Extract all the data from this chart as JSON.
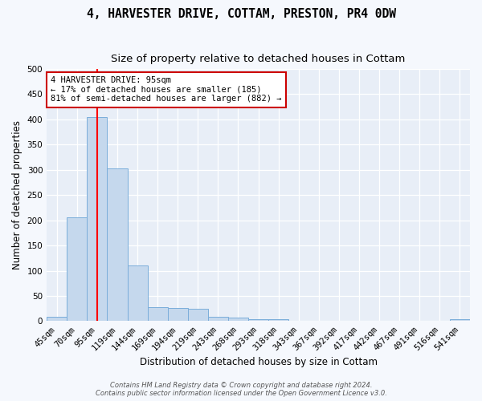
{
  "title": "4, HARVESTER DRIVE, COTTAM, PRESTON, PR4 0DW",
  "subtitle": "Size of property relative to detached houses in Cottam",
  "xlabel": "Distribution of detached houses by size in Cottam",
  "ylabel": "Number of detached properties",
  "categories": [
    "45sqm",
    "70sqm",
    "95sqm",
    "119sqm",
    "144sqm",
    "169sqm",
    "194sqm",
    "219sqm",
    "243sqm",
    "268sqm",
    "293sqm",
    "318sqm",
    "343sqm",
    "367sqm",
    "392sqm",
    "417sqm",
    "442sqm",
    "467sqm",
    "491sqm",
    "516sqm",
    "541sqm"
  ],
  "values": [
    8,
    205,
    405,
    302,
    110,
    28,
    27,
    25,
    8,
    7,
    4,
    4,
    0,
    0,
    0,
    0,
    0,
    0,
    0,
    0,
    4
  ],
  "bar_color": "#c5d8ed",
  "bar_edge_color": "#7aadda",
  "red_line_index": 2,
  "ylim": [
    0,
    500
  ],
  "yticks": [
    0,
    50,
    100,
    150,
    200,
    250,
    300,
    350,
    400,
    450,
    500
  ],
  "annotation_text": "4 HARVESTER DRIVE: 95sqm\n← 17% of detached houses are smaller (185)\n81% of semi-detached houses are larger (882) →",
  "annotation_box_color": "#ffffff",
  "annotation_box_edge": "#cc0000",
  "footer_line1": "Contains HM Land Registry data © Crown copyright and database right 2024.",
  "footer_line2": "Contains public sector information licensed under the Open Government Licence v3.0.",
  "plot_bg_color": "#e8eef7",
  "fig_bg_color": "#f5f8fd",
  "grid_color": "#ffffff",
  "title_fontsize": 10.5,
  "subtitle_fontsize": 9.5,
  "tick_fontsize": 7.5
}
